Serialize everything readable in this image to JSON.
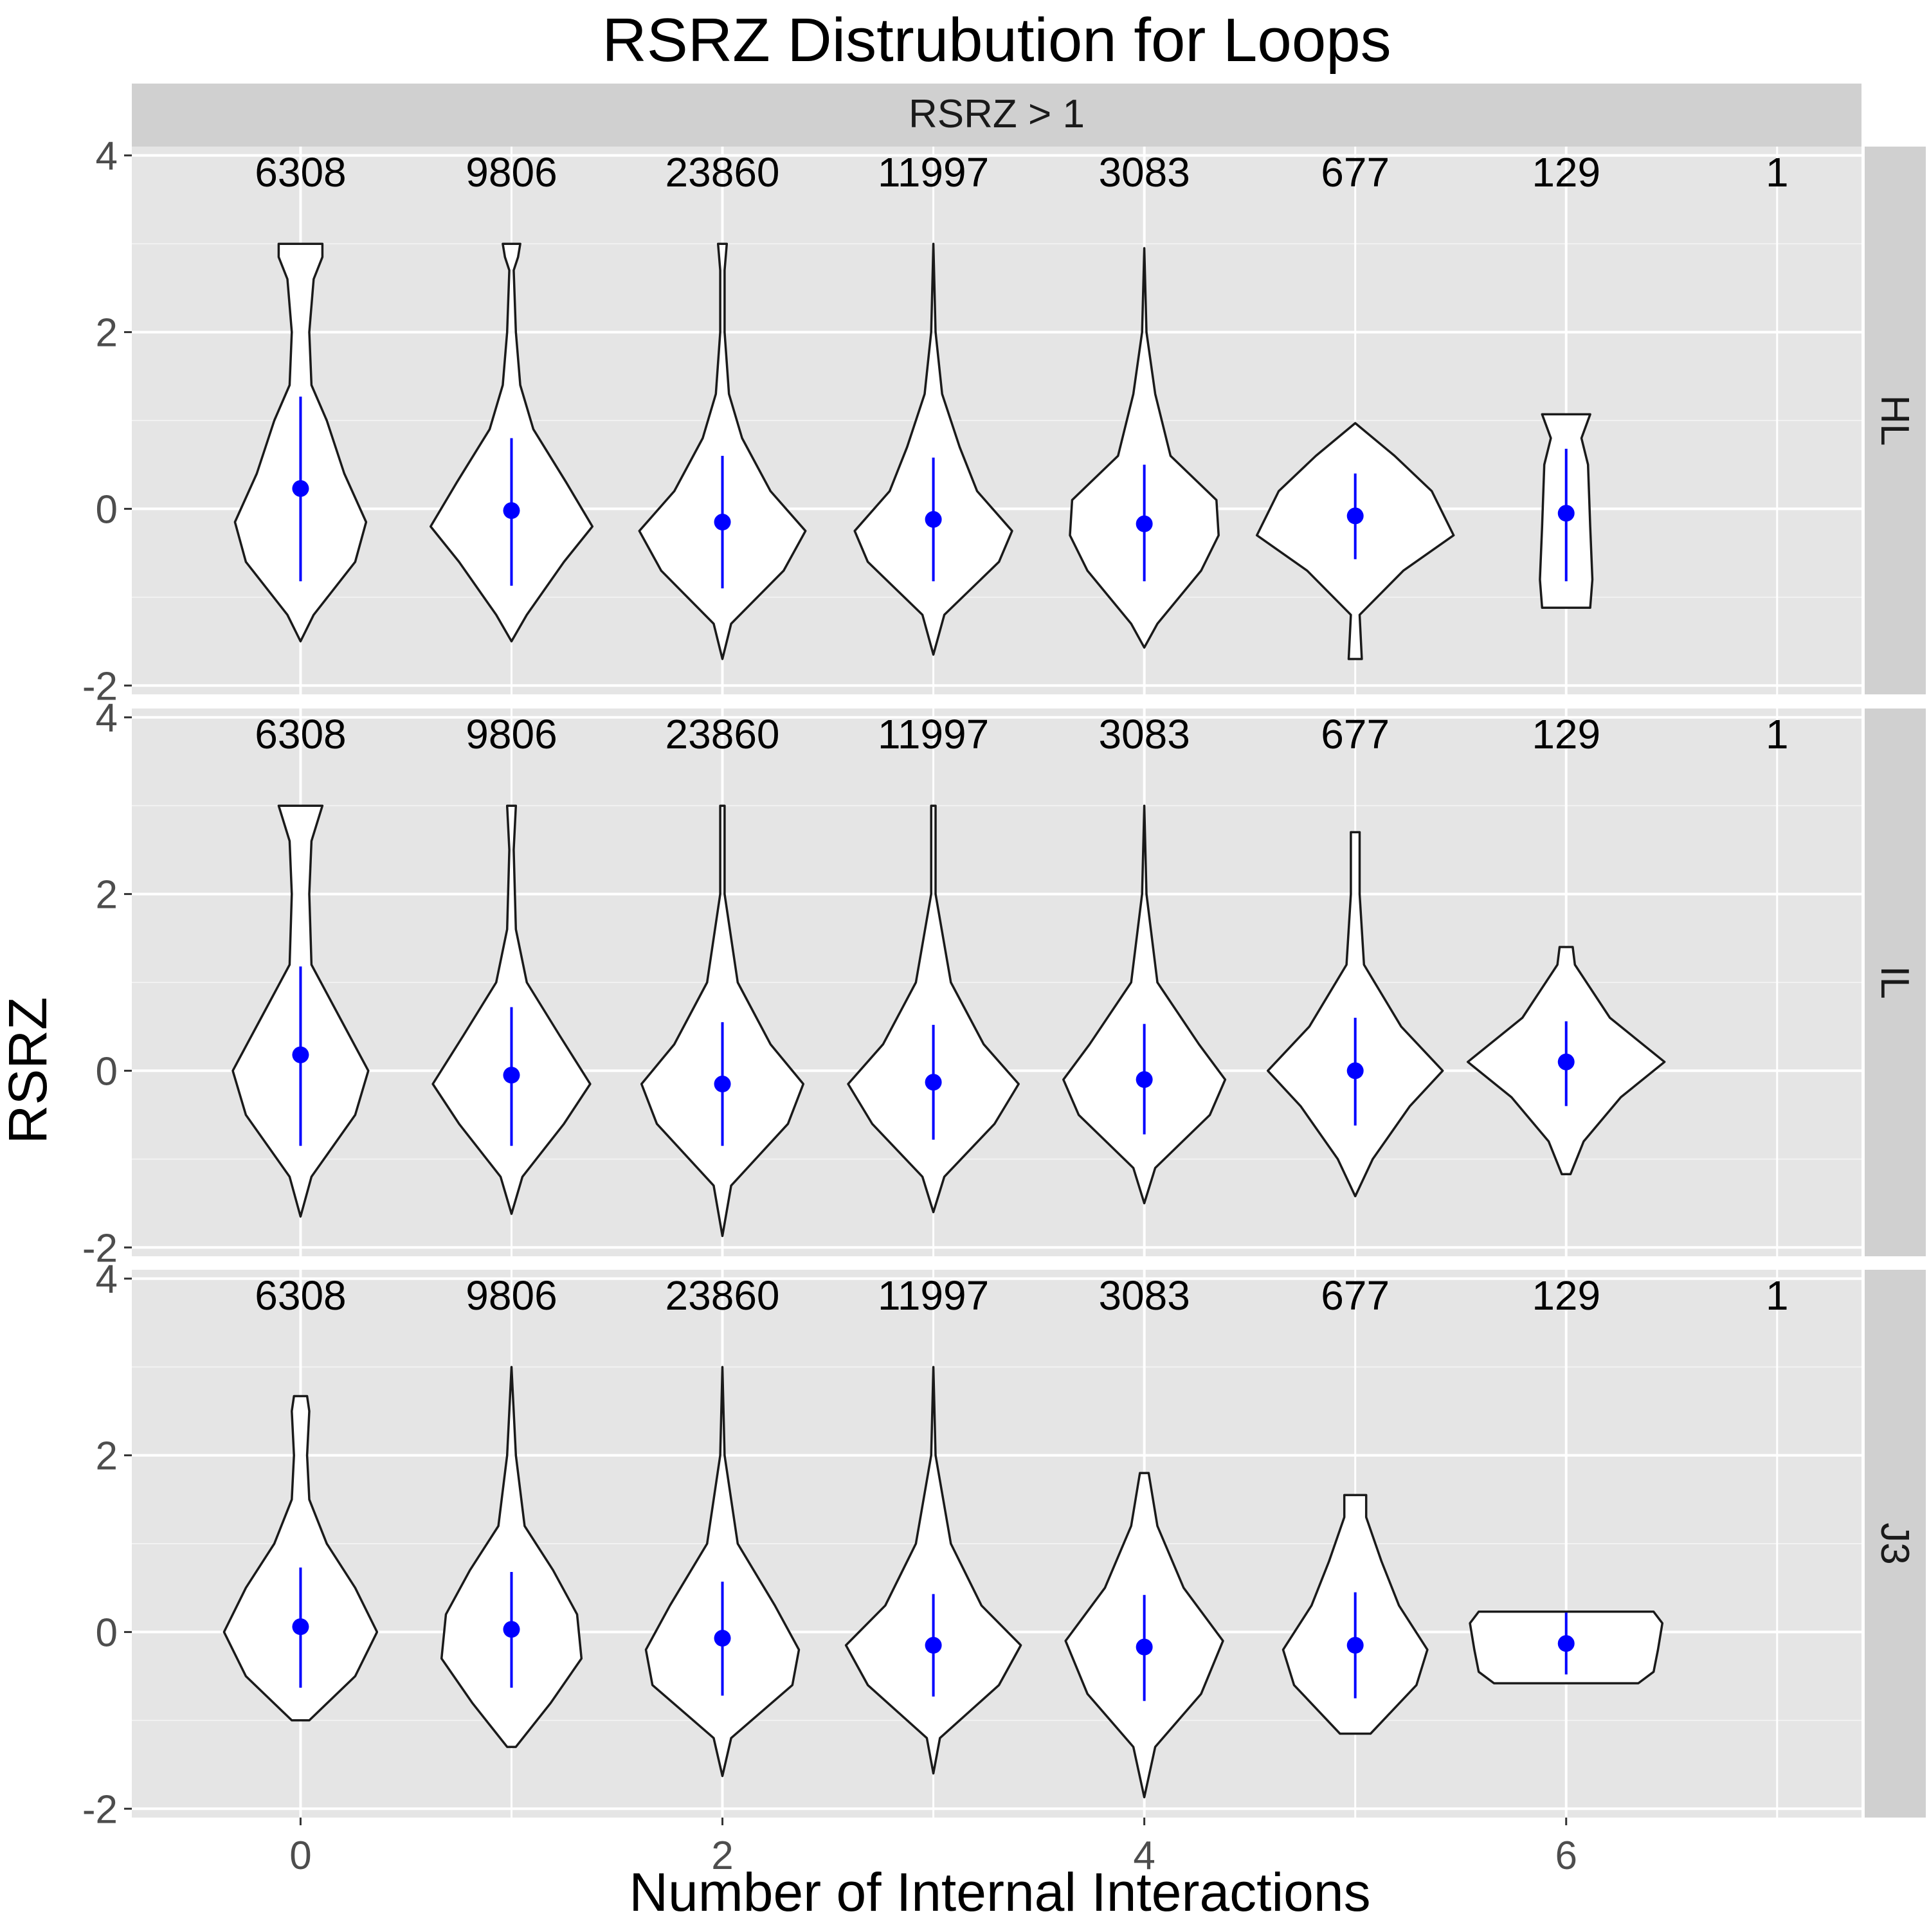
{
  "chart_data": {
    "type": "violin",
    "title": "RSRZ Distrubution for Loops",
    "xlabel": "Number of Internal Interactions",
    "ylabel": "RSRZ",
    "facet_column_label": "RSRZ > 1",
    "x_ticks": [
      "0",
      "2",
      "4",
      "6"
    ],
    "y_ticks": [
      "-2",
      "0",
      "2",
      "4"
    ],
    "xlim": [
      -0.8,
      7.4
    ],
    "ylim": [
      -2.1,
      4.1
    ],
    "grid": true,
    "violin_fill": "#ffffff",
    "violin_stroke": "#1a1a1a",
    "summary_color": "#0000ff",
    "panel_background": "#e5e5e5",
    "strip_background": "#d0d0d0",
    "counts": [
      {
        "x": 0,
        "label": "6308"
      },
      {
        "x": 1,
        "label": "9806"
      },
      {
        "x": 2,
        "label": "23860"
      },
      {
        "x": 3,
        "label": "11997"
      },
      {
        "x": 4,
        "label": "3083"
      },
      {
        "x": 5,
        "label": "677"
      },
      {
        "x": 6,
        "label": "129"
      },
      {
        "x": 7,
        "label": "1"
      }
    ],
    "panels": [
      {
        "name": "HL",
        "violins": [
          {
            "x": 0,
            "mean": 0.23,
            "lo": -0.82,
            "hi": 1.27,
            "min": -1.5,
            "max": 3.0,
            "prof": [
              [
                -1.5,
                0
              ],
              [
                -1.2,
                0.06
              ],
              [
                -0.6,
                0.25
              ],
              [
                -0.15,
                0.3
              ],
              [
                0.4,
                0.2
              ],
              [
                1.0,
                0.12
              ],
              [
                1.4,
                0.05
              ],
              [
                2.0,
                0.04
              ],
              [
                2.6,
                0.06
              ],
              [
                2.85,
                0.1
              ],
              [
                3.0,
                0.1
              ]
            ]
          },
          {
            "x": 1,
            "mean": -0.02,
            "lo": -0.87,
            "hi": 0.8,
            "min": -1.5,
            "max": 3.0,
            "prof": [
              [
                -1.5,
                0
              ],
              [
                -1.2,
                0.07
              ],
              [
                -0.6,
                0.24
              ],
              [
                -0.2,
                0.37
              ],
              [
                0.3,
                0.25
              ],
              [
                0.9,
                0.1
              ],
              [
                1.4,
                0.04
              ],
              [
                2.0,
                0.02
              ],
              [
                2.7,
                0.01
              ],
              [
                2.85,
                0.03
              ],
              [
                3.0,
                0.04
              ]
            ]
          },
          {
            "x": 2,
            "mean": -0.15,
            "lo": -0.9,
            "hi": 0.6,
            "min": -1.7,
            "max": 3.0,
            "prof": [
              [
                -1.7,
                0
              ],
              [
                -1.3,
                0.04
              ],
              [
                -0.7,
                0.28
              ],
              [
                -0.25,
                0.38
              ],
              [
                0.2,
                0.22
              ],
              [
                0.8,
                0.09
              ],
              [
                1.3,
                0.03
              ],
              [
                2.0,
                0.01
              ],
              [
                2.7,
                0.01
              ],
              [
                3.0,
                0.02
              ]
            ]
          },
          {
            "x": 3,
            "mean": -0.12,
            "lo": -0.82,
            "hi": 0.58,
            "min": -1.65,
            "max": 3.0,
            "prof": [
              [
                -1.65,
                0
              ],
              [
                -1.2,
                0.05
              ],
              [
                -0.6,
                0.3
              ],
              [
                -0.25,
                0.36
              ],
              [
                0.2,
                0.2
              ],
              [
                0.7,
                0.12
              ],
              [
                1.3,
                0.04
              ],
              [
                2.0,
                0.01
              ],
              [
                3.0,
                0.0
              ]
            ]
          },
          {
            "x": 4,
            "mean": -0.17,
            "lo": -0.82,
            "hi": 0.5,
            "min": -1.57,
            "max": 2.95,
            "prof": [
              [
                -1.57,
                0
              ],
              [
                -1.3,
                0.06
              ],
              [
                -0.7,
                0.26
              ],
              [
                -0.3,
                0.34
              ],
              [
                0.1,
                0.33
              ],
              [
                0.6,
                0.12
              ],
              [
                1.3,
                0.05
              ],
              [
                2.0,
                0.01
              ],
              [
                2.95,
                0.0
              ]
            ]
          },
          {
            "x": 5,
            "mean": -0.08,
            "lo": -0.57,
            "hi": 0.4,
            "min": -1.7,
            "max": 0.97,
            "prof": [
              [
                -1.7,
                0.03
              ],
              [
                -1.2,
                0.02
              ],
              [
                -0.7,
                0.22
              ],
              [
                -0.3,
                0.45
              ],
              [
                0.2,
                0.35
              ],
              [
                0.6,
                0.18
              ],
              [
                0.97,
                0.0
              ]
            ]
          },
          {
            "x": 6,
            "mean": -0.05,
            "lo": -0.82,
            "hi": 0.68,
            "min": -1.12,
            "max": 1.07,
            "prof": [
              [
                -1.12,
                0.11
              ],
              [
                -0.8,
                0.12
              ],
              [
                -0.2,
                0.11
              ],
              [
                0.5,
                0.1
              ],
              [
                0.8,
                0.07
              ],
              [
                1.07,
                0.11
              ]
            ]
          }
        ]
      },
      {
        "name": "IL",
        "violins": [
          {
            "x": 0,
            "mean": 0.18,
            "lo": -0.85,
            "hi": 1.18,
            "min": -1.65,
            "max": 3.0,
            "prof": [
              [
                -1.65,
                0
              ],
              [
                -1.2,
                0.05
              ],
              [
                -0.5,
                0.25
              ],
              [
                0.0,
                0.31
              ],
              [
                0.6,
                0.18
              ],
              [
                1.2,
                0.05
              ],
              [
                2.0,
                0.04
              ],
              [
                2.6,
                0.05
              ],
              [
                3.0,
                0.1
              ]
            ]
          },
          {
            "x": 1,
            "mean": -0.05,
            "lo": -0.85,
            "hi": 0.72,
            "min": -1.62,
            "max": 3.0,
            "prof": [
              [
                -1.62,
                0
              ],
              [
                -1.2,
                0.05
              ],
              [
                -0.6,
                0.24
              ],
              [
                -0.15,
                0.36
              ],
              [
                0.4,
                0.22
              ],
              [
                1.0,
                0.07
              ],
              [
                1.6,
                0.02
              ],
              [
                2.5,
                0.01
              ],
              [
                3.0,
                0.02
              ]
            ]
          },
          {
            "x": 2,
            "mean": -0.15,
            "lo": -0.85,
            "hi": 0.55,
            "min": -1.87,
            "max": 3.0,
            "prof": [
              [
                -1.87,
                0
              ],
              [
                -1.3,
                0.04
              ],
              [
                -0.6,
                0.3
              ],
              [
                -0.15,
                0.37
              ],
              [
                0.3,
                0.22
              ],
              [
                1.0,
                0.07
              ],
              [
                2.0,
                0.01
              ],
              [
                3.0,
                0.01
              ]
            ]
          },
          {
            "x": 3,
            "mean": -0.13,
            "lo": -0.78,
            "hi": 0.52,
            "min": -1.6,
            "max": 3.0,
            "prof": [
              [
                -1.6,
                0
              ],
              [
                -1.2,
                0.05
              ],
              [
                -0.6,
                0.28
              ],
              [
                -0.15,
                0.39
              ],
              [
                0.3,
                0.23
              ],
              [
                1.0,
                0.08
              ],
              [
                2.0,
                0.01
              ],
              [
                3.0,
                0.01
              ]
            ]
          },
          {
            "x": 4,
            "mean": -0.1,
            "lo": -0.72,
            "hi": 0.53,
            "min": -1.5,
            "max": 3.0,
            "prof": [
              [
                -1.5,
                0
              ],
              [
                -1.1,
                0.05
              ],
              [
                -0.5,
                0.3
              ],
              [
                -0.1,
                0.37
              ],
              [
                0.3,
                0.25
              ],
              [
                1.0,
                0.06
              ],
              [
                2.0,
                0.01
              ],
              [
                3.0,
                0.0
              ]
            ]
          },
          {
            "x": 5,
            "mean": 0.0,
            "lo": -0.62,
            "hi": 0.6,
            "min": -1.42,
            "max": 2.7,
            "prof": [
              [
                -1.42,
                0
              ],
              [
                -1.0,
                0.08
              ],
              [
                -0.4,
                0.25
              ],
              [
                0.0,
                0.4
              ],
              [
                0.5,
                0.21
              ],
              [
                1.2,
                0.04
              ],
              [
                2.0,
                0.02
              ],
              [
                2.7,
                0.02
              ]
            ]
          },
          {
            "x": 6,
            "mean": 0.1,
            "lo": -0.4,
            "hi": 0.56,
            "min": -1.17,
            "max": 1.4,
            "prof": [
              [
                -1.17,
                0.02
              ],
              [
                -0.8,
                0.08
              ],
              [
                -0.3,
                0.25
              ],
              [
                0.1,
                0.45
              ],
              [
                0.6,
                0.2
              ],
              [
                1.2,
                0.04
              ],
              [
                1.4,
                0.03
              ]
            ]
          }
        ]
      },
      {
        "name": "J3",
        "violins": [
          {
            "x": 0,
            "mean": 0.06,
            "lo": -0.63,
            "hi": 0.73,
            "min": -1.0,
            "max": 2.67,
            "prof": [
              [
                -1.0,
                0.04
              ],
              [
                -0.5,
                0.25
              ],
              [
                0.0,
                0.35
              ],
              [
                0.5,
                0.25
              ],
              [
                1.0,
                0.12
              ],
              [
                1.5,
                0.04
              ],
              [
                2.0,
                0.03
              ],
              [
                2.5,
                0.04
              ],
              [
                2.67,
                0.03
              ]
            ]
          },
          {
            "x": 1,
            "mean": 0.03,
            "lo": -0.63,
            "hi": 0.68,
            "min": -1.3,
            "max": 3.0,
            "prof": [
              [
                -1.3,
                0.02
              ],
              [
                -0.8,
                0.18
              ],
              [
                -0.3,
                0.32
              ],
              [
                0.2,
                0.3
              ],
              [
                0.7,
                0.19
              ],
              [
                1.2,
                0.06
              ],
              [
                2.0,
                0.02
              ],
              [
                3.0,
                0.0
              ]
            ]
          },
          {
            "x": 2,
            "mean": -0.07,
            "lo": -0.72,
            "hi": 0.57,
            "min": -1.63,
            "max": 3.0,
            "prof": [
              [
                -1.63,
                0
              ],
              [
                -1.2,
                0.04
              ],
              [
                -0.6,
                0.32
              ],
              [
                -0.2,
                0.35
              ],
              [
                0.3,
                0.24
              ],
              [
                1.0,
                0.07
              ],
              [
                2.0,
                0.01
              ],
              [
                3.0,
                0.0
              ]
            ]
          },
          {
            "x": 3,
            "mean": -0.15,
            "lo": -0.73,
            "hi": 0.43,
            "min": -1.6,
            "max": 3.0,
            "prof": [
              [
                -1.6,
                0
              ],
              [
                -1.2,
                0.03
              ],
              [
                -0.6,
                0.3
              ],
              [
                -0.15,
                0.4
              ],
              [
                0.3,
                0.22
              ],
              [
                1.0,
                0.08
              ],
              [
                2.0,
                0.01
              ],
              [
                3.0,
                0.0
              ]
            ]
          },
          {
            "x": 4,
            "mean": -0.17,
            "lo": -0.78,
            "hi": 0.42,
            "min": -1.87,
            "max": 1.8,
            "prof": [
              [
                -1.87,
                0
              ],
              [
                -1.3,
                0.05
              ],
              [
                -0.7,
                0.26
              ],
              [
                -0.1,
                0.36
              ],
              [
                0.5,
                0.18
              ],
              [
                1.2,
                0.06
              ],
              [
                1.8,
                0.02
              ]
            ]
          },
          {
            "x": 5,
            "mean": -0.15,
            "lo": -0.75,
            "hi": 0.45,
            "min": -1.15,
            "max": 1.55,
            "prof": [
              [
                -1.15,
                0.07
              ],
              [
                -0.6,
                0.28
              ],
              [
                -0.2,
                0.33
              ],
              [
                0.3,
                0.2
              ],
              [
                0.8,
                0.12
              ],
              [
                1.3,
                0.05
              ],
              [
                1.55,
                0.05
              ]
            ]
          },
          {
            "x": 6,
            "mean": -0.13,
            "lo": -0.48,
            "hi": 0.22,
            "min": -0.58,
            "max": 0.23,
            "prof": [
              [
                -0.58,
                0.33
              ],
              [
                -0.45,
                0.4
              ],
              [
                -0.2,
                0.42
              ],
              [
                0.1,
                0.44
              ],
              [
                0.23,
                0.4
              ]
            ]
          }
        ]
      }
    ]
  }
}
